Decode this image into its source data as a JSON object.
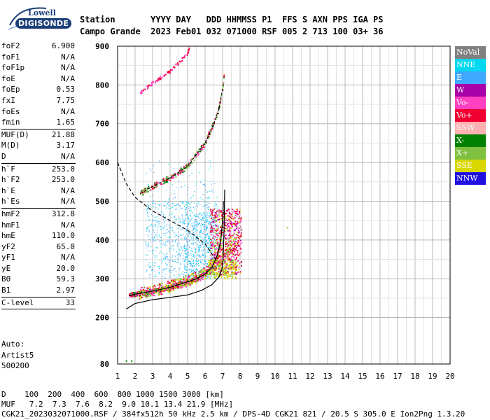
{
  "logo": {
    "line1": "Lowell",
    "line2": "DIGISONDE"
  },
  "header": {
    "row1": "Station       YYYY DAY   DDD HHMMSS P1  FFS S AXN PPS IGA PS",
    "row2": "Campo Grande  2023 Feb01 032 071000 RSF 005 2 713 100 03+ 36"
  },
  "params_groups": [
    [
      {
        "label": "foF2",
        "value": "6.900"
      },
      {
        "label": "foF1",
        "value": "N/A"
      },
      {
        "label": "foF1p",
        "value": "N/A"
      },
      {
        "label": "foE",
        "value": "N/A"
      },
      {
        "label": "foEp",
        "value": "0.53"
      },
      {
        "label": "fxI",
        "value": "7.75"
      },
      {
        "label": "foEs",
        "value": "N/A"
      },
      {
        "label": "fmin",
        "value": "1.65"
      }
    ],
    [
      {
        "label": "MUF(D)",
        "value": "21.88"
      },
      {
        "label": "M(D)",
        "value": "3.17"
      },
      {
        "label": "D",
        "value": "N/A"
      }
    ],
    [
      {
        "label": "h`F",
        "value": "253.0"
      },
      {
        "label": "h`F2",
        "value": "253.0"
      },
      {
        "label": "h`E",
        "value": "N/A"
      },
      {
        "label": "h`Es",
        "value": "N/A"
      }
    ],
    [
      {
        "label": "hmF2",
        "value": "312.8"
      },
      {
        "label": "hmF1",
        "value": "N/A"
      },
      {
        "label": "hmE",
        "value": "110.0"
      },
      {
        "label": "yF2",
        "value": "65.0"
      },
      {
        "label": "yF1",
        "value": "N/A"
      },
      {
        "label": "yE",
        "value": "20.0"
      },
      {
        "label": "B0",
        "value": "59.3"
      },
      {
        "label": "B1",
        "value": "2.97"
      }
    ],
    [
      {
        "label": "C-level",
        "value": "33"
      }
    ]
  ],
  "auto": {
    "line1": "Auto:",
    "line2": "Artist5",
    "line3": "500200"
  },
  "legend": [
    {
      "label": "NoVal",
      "color": "#808080"
    },
    {
      "label": "NNE",
      "color": "#00d8f0"
    },
    {
      "label": "E",
      "color": "#40a8ff"
    },
    {
      "label": "W",
      "color": "#a800a8"
    },
    {
      "label": "Vo-",
      "color": "#ff40c0"
    },
    {
      "label": "Vo+",
      "color": "#f00030"
    },
    {
      "label": "SSW",
      "color": "#ffb0b0"
    },
    {
      "label": "X-",
      "color": "#008000"
    },
    {
      "label": "X+",
      "color": "#80c040"
    },
    {
      "label": "SSE",
      "color": "#d8d800"
    },
    {
      "label": "NNW",
      "color": "#2010e0"
    }
  ],
  "footer": {
    "row1": "D    100  200  400  600  800 1000 1500 3000 [km]",
    "row2": "MUF   7.2  7.3  7.6  8.2  9.0 10.1 13.4 21.9 [MHz]",
    "row3": "CGK21_2023032071000.RSF / 384fx512h 50 kHz 2.5 km / DPS-4D CGK21 821 / 20.5 S 305.0 E Ion2Png 1.3.20"
  },
  "chart_data": {
    "type": "scatter",
    "xlim": [
      1,
      20
    ],
    "ylim": [
      80,
      900
    ],
    "x_ticks": [
      "1",
      "2",
      "3",
      "4",
      "5",
      "6",
      "7",
      "8",
      "9",
      "10",
      "11",
      "12",
      "13",
      "14",
      "15",
      "16",
      "17",
      "18",
      "19",
      "20"
    ],
    "y_ticks": [
      "80",
      "200",
      "300",
      "400",
      "500",
      "600",
      "700",
      "800",
      "900"
    ],
    "grid": true,
    "legend_position": "right",
    "profile_solid": [
      [
        1.5,
        222
      ],
      [
        2,
        236
      ],
      [
        3,
        246
      ],
      [
        4,
        252
      ],
      [
        5,
        258
      ],
      [
        5.8,
        270
      ],
      [
        6.4,
        285
      ],
      [
        6.8,
        305
      ],
      [
        7.0,
        330
      ],
      [
        7.05,
        380
      ],
      [
        7.08,
        420
      ],
      [
        7.1,
        470
      ],
      [
        7.12,
        530
      ]
    ],
    "muf_curve_dashed": [
      [
        1,
        600
      ],
      [
        1.5,
        545
      ],
      [
        2,
        510
      ],
      [
        3,
        475
      ],
      [
        4,
        450
      ],
      [
        5,
        425
      ],
      [
        6,
        390
      ],
      [
        6.6,
        350
      ]
    ],
    "trace_o_second_hop": [
      [
        2.3,
        520
      ],
      [
        3,
        538
      ],
      [
        4,
        560
      ],
      [
        5,
        590
      ],
      [
        5.5,
        620
      ],
      [
        6,
        650
      ],
      [
        6.5,
        700
      ],
      [
        6.8,
        740
      ],
      [
        7.0,
        790
      ],
      [
        7.1,
        830
      ]
    ],
    "trace_o_third_hop": [
      [
        2.3,
        780
      ],
      [
        3,
        805
      ],
      [
        4,
        835
      ],
      [
        5,
        880
      ],
      [
        5.1,
        895
      ]
    ],
    "trace_o_first_hop": [
      [
        1.65,
        256
      ],
      [
        2,
        260
      ],
      [
        3,
        268
      ],
      [
        4,
        278
      ],
      [
        5,
        292
      ],
      [
        5.5,
        300
      ],
      [
        6,
        312
      ],
      [
        6.4,
        330
      ],
      [
        6.7,
        360
      ],
      [
        6.9,
        400
      ],
      [
        7.0,
        450
      ],
      [
        7.05,
        500
      ]
    ],
    "trace_x_first_hop": [
      [
        2.2,
        262
      ],
      [
        3,
        268
      ],
      [
        4,
        280
      ],
      [
        5,
        295
      ],
      [
        6,
        315
      ],
      [
        6.8,
        345
      ],
      [
        7.5,
        380
      ],
      [
        7.8,
        400
      ]
    ],
    "isolated_points": [
      [
        10.7,
        432
      ],
      [
        1.5,
        88
      ],
      [
        1.8,
        88
      ]
    ]
  }
}
